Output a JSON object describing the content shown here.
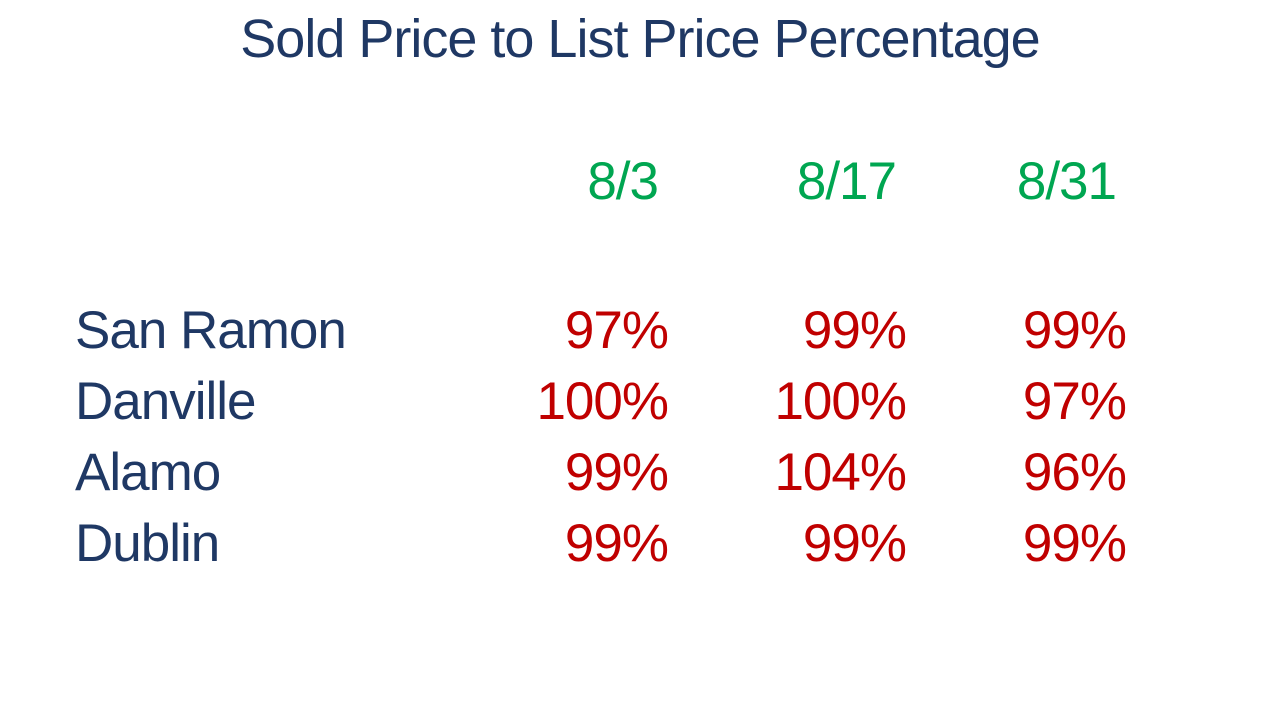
{
  "title": "Sold Price to List Price Percentage",
  "colors": {
    "background": "#FFFFFF",
    "title_text": "#1F3864",
    "city_text": "#1F3864",
    "date_text": "#00A651",
    "value_text": "#C00000"
  },
  "table": {
    "date_headers": [
      "8/3",
      "8/17",
      "8/31"
    ],
    "rows": [
      {
        "city": "San Ramon",
        "values": [
          "97%",
          "99%",
          "99%"
        ]
      },
      {
        "city": "Danville",
        "values": [
          "100%",
          "100%",
          "97%"
        ]
      },
      {
        "city": "Alamo",
        "values": [
          "99%",
          "104%",
          "96%"
        ]
      },
      {
        "city": "Dublin",
        "values": [
          "99%",
          "99%",
          "99%"
        ]
      }
    ]
  },
  "chart_data": {
    "type": "table",
    "title": "Sold Price to List Price Percentage",
    "columns": [
      "",
      "8/3",
      "8/17",
      "8/31"
    ],
    "categories": [
      "8/3",
      "8/17",
      "8/31"
    ],
    "series": [
      {
        "name": "San Ramon",
        "values": [
          97,
          99,
          99
        ]
      },
      {
        "name": "Danville",
        "values": [
          100,
          100,
          97
        ]
      },
      {
        "name": "Alamo",
        "values": [
          99,
          104,
          96
        ]
      },
      {
        "name": "Dublin",
        "values": [
          99,
          99,
          99
        ]
      }
    ],
    "value_unit": "%",
    "layout_hints": {
      "header_color": "#00A651",
      "row_label_color": "#1F3864",
      "value_color": "#C00000",
      "grid": false,
      "values_alignment": "right"
    }
  }
}
